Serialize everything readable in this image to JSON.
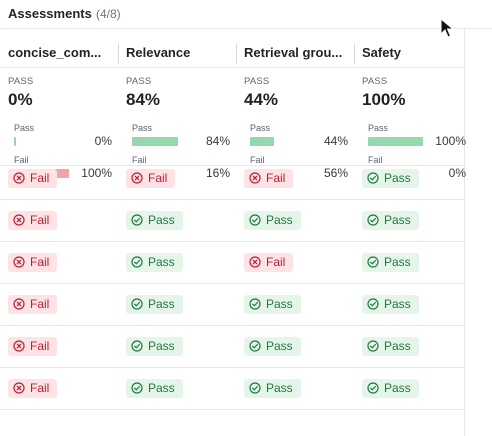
{
  "header": {
    "title": "Assessments",
    "count": "(4/8)"
  },
  "columns": [
    {
      "title": "concise_com...",
      "summary_label": "PASS",
      "summary_value": "0%",
      "pass": {
        "label": "Pass",
        "pct": "0%",
        "fraction": 0.0
      },
      "fail": {
        "label": "Fail",
        "pct": "100%",
        "fraction": 1.0
      },
      "cells": [
        "Fail",
        "Fail",
        "Fail",
        "Fail",
        "Fail",
        "Fail"
      ]
    },
    {
      "title": "Relevance",
      "summary_label": "PASS",
      "summary_value": "84%",
      "pass": {
        "label": "Pass",
        "pct": "84%",
        "fraction": 0.84
      },
      "fail": {
        "label": "Fail",
        "pct": "16%",
        "fraction": 0.16
      },
      "cells": [
        "Fail",
        "Pass",
        "Pass",
        "Pass",
        "Pass",
        "Pass"
      ]
    },
    {
      "title": "Retrieval grou...",
      "summary_label": "PASS",
      "summary_value": "44%",
      "pass": {
        "label": "Pass",
        "pct": "44%",
        "fraction": 0.44
      },
      "fail": {
        "label": "Fail",
        "pct": "56%",
        "fraction": 0.56
      },
      "cells": [
        "Fail",
        "Pass",
        "Fail",
        "Pass",
        "Pass",
        "Pass"
      ]
    },
    {
      "title": "Safety",
      "summary_label": "PASS",
      "summary_value": "100%",
      "pass": {
        "label": "Pass",
        "pct": "100%",
        "fraction": 1.0
      },
      "fail": {
        "label": "Fail",
        "pct": "0%",
        "fraction": 0.0
      },
      "cells": [
        "Pass",
        "Pass",
        "Pass",
        "Pass",
        "Pass",
        "Pass"
      ]
    }
  ],
  "icons": {
    "pass": "check-circle-icon",
    "fail": "x-circle-icon"
  },
  "colors": {
    "pass_bar": "#97d7b0",
    "fail_bar": "#f2a3ab",
    "pass_badge_bg": "#e6f5ea",
    "pass_badge_text": "#1f7a3f",
    "fail_badge_bg": "#fde3e6",
    "fail_badge_text": "#b42335"
  }
}
